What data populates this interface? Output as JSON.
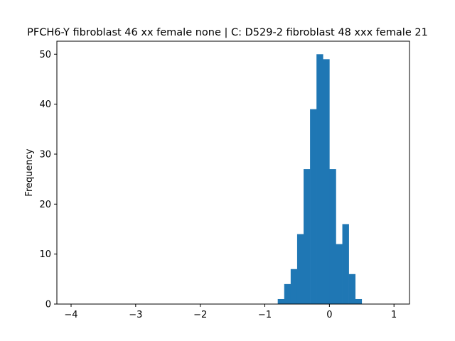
{
  "chart_data": {
    "type": "bar",
    "title": "PFCH6-Y fibroblast 46 xx female none | C: D529-2 fibroblast 48 xxx female 21",
    "xlabel": "",
    "ylabel": "Frequency",
    "xlim": [
      -4.22,
      1.24
    ],
    "ylim": [
      0,
      52.6
    ],
    "xticks": [
      -4,
      -3,
      -2,
      -1,
      0,
      1
    ],
    "xtick_labels": [
      "−4",
      "−3",
      "−2",
      "−1",
      "0",
      "1"
    ],
    "yticks": [
      0,
      10,
      20,
      30,
      40,
      50
    ],
    "ytick_labels": [
      "0",
      "10",
      "20",
      "30",
      "40",
      "50"
    ],
    "grid": false,
    "bar_color": "#1f77b4",
    "bin_edges": [
      -0.8,
      -0.7,
      -0.6,
      -0.5,
      -0.4,
      -0.3,
      -0.2,
      -0.1,
      0.0,
      0.1,
      0.2,
      0.3,
      0.4,
      0.5
    ],
    "bin_edges_note": "",
    "bins": [
      {
        "x0": -0.8,
        "x1": -0.7,
        "count": 1
      },
      {
        "x0": -0.7,
        "x1": -0.6,
        "count": 4
      },
      {
        "x0": -0.6,
        "x1": -0.5,
        "count": 7
      },
      {
        "x0": -0.5,
        "x1": -0.4,
        "count": 14
      },
      {
        "x0": -0.4,
        "x1": -0.3,
        "count": 27
      },
      {
        "x0": -0.3,
        "x1": -0.2,
        "count": 39
      },
      {
        "x0": -0.2,
        "x1": -0.1,
        "count": 50
      },
      {
        "x0": -0.1,
        "x1": 0.0,
        "count": 49
      },
      {
        "x0": 0.0,
        "x1": 0.1,
        "count": 27
      },
      {
        "x0": 0.1,
        "x1": 0.2,
        "count": 12
      },
      {
        "x0": 0.2,
        "x1": 0.3,
        "count": 16
      },
      {
        "x0": 0.3,
        "x1": 0.4,
        "count": 6
      },
      {
        "x0": 0.4,
        "x1": 0.5,
        "count": 1
      }
    ]
  }
}
